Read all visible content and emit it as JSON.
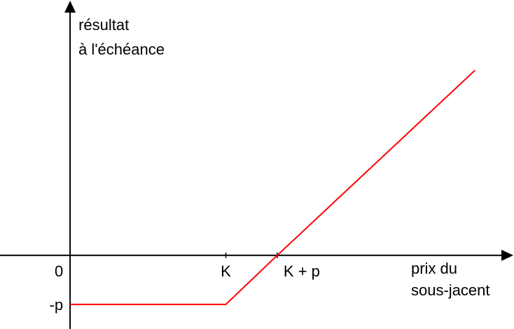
{
  "chart_data": {
    "type": "line",
    "title": "",
    "ylabel_lines": [
      "résultat",
      "à l'échéance"
    ],
    "xlabel_lines": [
      "prix du",
      "sous-jacent"
    ],
    "x_ticks": [
      {
        "x": 0,
        "label": "0"
      },
      {
        "x": 1,
        "label": "K"
      },
      {
        "x": 1.33,
        "label": "K + p"
      }
    ],
    "y_ticks": [
      {
        "y": -1,
        "label": "-p"
      }
    ],
    "series": [
      {
        "x": [
          0,
          1,
          1.33,
          2.6
        ],
        "y": [
          -1,
          -1,
          0,
          3.77
        ]
      }
    ],
    "xlim": [
      -0.45,
      2.85
    ],
    "ylim": [
      -1.5,
      5.2
    ],
    "legend": "none",
    "grid": false,
    "colors": {
      "axis": "#000000",
      "series": "#ff0000"
    }
  }
}
